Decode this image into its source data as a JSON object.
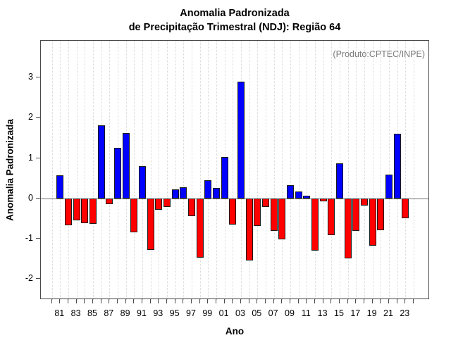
{
  "chart_data": {
    "type": "bar",
    "title": "Anomalia Padronizada",
    "subtitle": "de Precipitação Trimestral (NDJ): Região 64",
    "annotation": "(Produto:CPTEC/INPE)",
    "xlabel": "Ano",
    "ylabel": "Anomalia Padronizada",
    "categories": [
      "81",
      "82",
      "83",
      "84",
      "85",
      "86",
      "87",
      "88",
      "89",
      "90",
      "91",
      "92",
      "93",
      "94",
      "95",
      "96",
      "97",
      "98",
      "99",
      "00",
      "01",
      "02",
      "03",
      "04",
      "05",
      "06",
      "07",
      "08",
      "09",
      "10",
      "11",
      "12",
      "13",
      "14",
      "15",
      "16",
      "17",
      "18",
      "19",
      "20",
      "21",
      "22",
      "23"
    ],
    "values": [
      0.58,
      -0.67,
      -0.55,
      -0.62,
      -0.63,
      1.81,
      -0.15,
      1.26,
      1.62,
      -0.85,
      0.8,
      -1.28,
      -0.29,
      -0.22,
      0.22,
      0.28,
      -0.45,
      -1.47,
      0.45,
      0.25,
      1.03,
      -0.66,
      2.9,
      -1.55,
      -0.69,
      -0.22,
      -0.81,
      -1.03,
      0.32,
      0.17,
      0.07,
      -1.3,
      -0.07,
      -0.92,
      0.87,
      -1.49,
      -0.82,
      -0.18,
      -1.18,
      -0.79,
      0.59,
      1.6,
      -0.49
    ],
    "x_tick_labels": [
      "81",
      "83",
      "85",
      "87",
      "89",
      "91",
      "93",
      "95",
      "97",
      "99",
      "01",
      "03",
      "05",
      "07",
      "09",
      "11",
      "13",
      "15",
      "17",
      "19",
      "21",
      "23"
    ],
    "y_ticks": [
      -2,
      -1,
      0,
      1,
      2,
      3
    ],
    "ylim": [
      -2.53,
      3.92
    ],
    "grid": "vertical-dotted",
    "legend": "none",
    "positive_color": "#0000ff",
    "negative_color": "#ff0000",
    "bar_border_color": "#1c1c1c",
    "zero_line_color": "#6e6e6e",
    "annotation_color": "#7b7b7b"
  }
}
